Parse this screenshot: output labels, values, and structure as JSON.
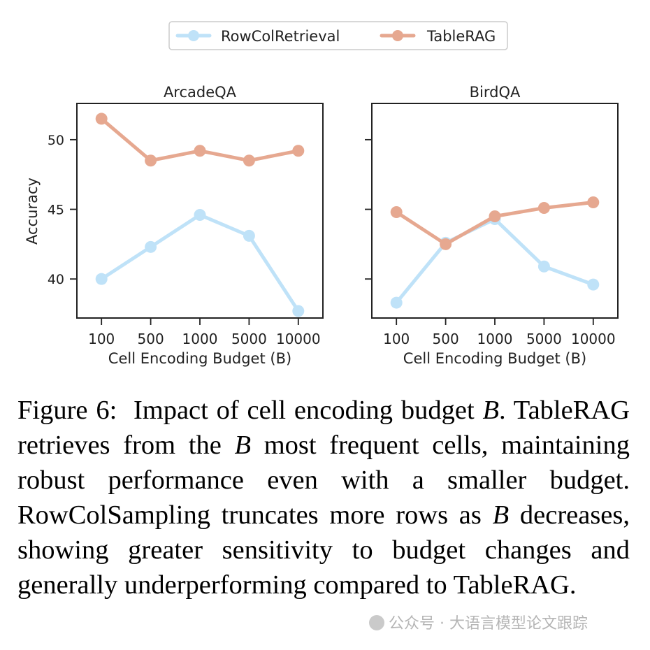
{
  "chart_data": [
    {
      "type": "line",
      "title": "ArcadeQA",
      "xlabel": "Cell Encoding Budget (B)",
      "ylabel": "Accuracy",
      "categories": [
        "100",
        "500",
        "1000",
        "5000",
        "10000"
      ],
      "ylim": [
        37.2,
        52.6
      ],
      "yticks": [
        "40",
        "45",
        "50"
      ],
      "series": [
        {
          "name": "RowColRetrieval",
          "color": "#bfe2f8",
          "values": [
            40.0,
            42.3,
            44.6,
            43.1,
            37.7
          ]
        },
        {
          "name": "TableRAG",
          "color": "#e6a890",
          "values": [
            51.5,
            48.5,
            49.2,
            48.5,
            49.2
          ]
        }
      ]
    },
    {
      "type": "line",
      "title": "BirdQA",
      "xlabel": "Cell Encoding Budget (B)",
      "ylabel": "",
      "categories": [
        "100",
        "500",
        "1000",
        "5000",
        "10000"
      ],
      "ylim": [
        37.2,
        52.6
      ],
      "yticks": [],
      "series": [
        {
          "name": "RowColRetrieval",
          "color": "#bfe2f8",
          "values": [
            38.3,
            42.6,
            44.3,
            40.9,
            39.6
          ]
        },
        {
          "name": "TableRAG",
          "color": "#e6a890",
          "values": [
            44.8,
            42.5,
            44.5,
            45.1,
            45.5
          ]
        }
      ]
    }
  ],
  "legend": [
    {
      "label": "RowColRetrieval",
      "color": "#bfe2f8"
    },
    {
      "label": "TableRAG",
      "color": "#e6a890"
    }
  ],
  "caption": {
    "label": "Figure 6:",
    "s1": "Impact of cell encoding budget ",
    "b1": "B",
    "s2": ". TableRAG retrieves from the ",
    "b2": "B",
    "s3": " most frequent cells, maintaining robust performance even with a smaller budget. RowColSampling truncates more rows as ",
    "b3": "B",
    "s4": " decreases, showing greater sensitivity to budget changes and generally underperforming compared to TableRAG."
  },
  "watermark": "公众号 · 大语言模型论文跟踪"
}
